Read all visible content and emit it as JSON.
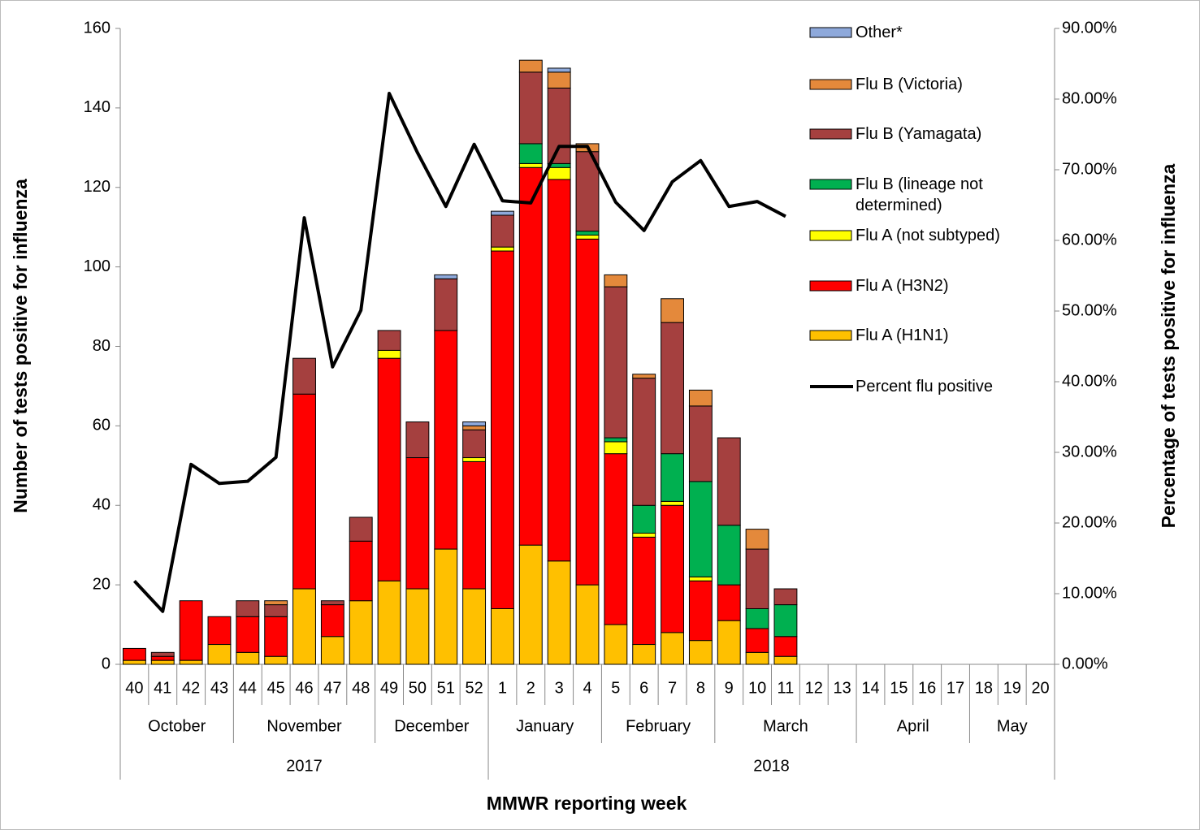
{
  "chart_data": {
    "type": "bar",
    "stacked": true,
    "x_label": "MMWR reporting week",
    "y_label": "Number of tests positive for influenza",
    "y2_label": "Percentage of tests positive for influenza",
    "categories": [
      "40",
      "41",
      "42",
      "43",
      "44",
      "45",
      "46",
      "47",
      "48",
      "49",
      "50",
      "51",
      "52",
      "1",
      "2",
      "3",
      "4",
      "5",
      "6",
      "7",
      "8",
      "9",
      "10",
      "11",
      "12",
      "13",
      "14",
      "15",
      "16",
      "17",
      "18",
      "19",
      "20"
    ],
    "months": [
      "October",
      null,
      null,
      null,
      "November",
      null,
      null,
      null,
      null,
      "December",
      null,
      null,
      null,
      "January",
      null,
      null,
      null,
      "February",
      null,
      null,
      null,
      "March",
      null,
      null,
      null,
      null,
      "April",
      null,
      null,
      null,
      "May",
      null,
      null
    ],
    "years": [
      "2017",
      null,
      null,
      null,
      null,
      null,
      null,
      null,
      null,
      null,
      null,
      null,
      null,
      "2018",
      null,
      null,
      null,
      null,
      null,
      null,
      null,
      null,
      null,
      null,
      null,
      null,
      null,
      null,
      null,
      null,
      null,
      null,
      null
    ],
    "ylim": [
      0,
      160
    ],
    "yticks": [
      0,
      20,
      40,
      60,
      80,
      100,
      120,
      140,
      160
    ],
    "y2lim": [
      0,
      90
    ],
    "y2ticks": [
      {
        "value": 0,
        "label": "0.00%"
      },
      {
        "value": 10,
        "label": "10.00%"
      },
      {
        "value": 20,
        "label": "20.00%"
      },
      {
        "value": 30,
        "label": "30.00%"
      },
      {
        "value": 40,
        "label": "40.00%"
      },
      {
        "value": 50,
        "label": "50.00%"
      },
      {
        "value": 60,
        "label": "60.00%"
      },
      {
        "value": 70,
        "label": "70.00%"
      },
      {
        "value": 80,
        "label": "80.00%"
      },
      {
        "value": 90,
        "label": "90.00%"
      }
    ],
    "legend": "right",
    "series": [
      {
        "name": "Flu A (H1N1)",
        "color": "#FFC000",
        "values": [
          1,
          1,
          1,
          5,
          3,
          2,
          19,
          7,
          16,
          21,
          19,
          29,
          19,
          14,
          30,
          26,
          20,
          10,
          5,
          8,
          6,
          11,
          3,
          2,
          null,
          null,
          null,
          null,
          null,
          null,
          null,
          null,
          null
        ]
      },
      {
        "name": "Flu A (H3N2)",
        "color": "#FF0000",
        "values": [
          3,
          1,
          15,
          7,
          9,
          10,
          49,
          8,
          15,
          56,
          33,
          55,
          32,
          90,
          95,
          96,
          87,
          43,
          27,
          32,
          15,
          9,
          6,
          5,
          null,
          null,
          null,
          null,
          null,
          null,
          null,
          null,
          null
        ]
      },
      {
        "name": "Flu A (not subtyped)",
        "color": "#FFFF00",
        "values": [
          0,
          0,
          0,
          0,
          0,
          0,
          0,
          0,
          0,
          2,
          0,
          0,
          1,
          1,
          1,
          3,
          1,
          3,
          1,
          1,
          1,
          0,
          0,
          0,
          null,
          null,
          null,
          null,
          null,
          null,
          null,
          null,
          null
        ]
      },
      {
        "name": "Flu B (lineage not determined)",
        "color": "#00B050",
        "values": [
          0,
          0,
          0,
          0,
          0,
          0,
          0,
          0,
          0,
          0,
          0,
          0,
          0,
          0,
          5,
          1,
          1,
          1,
          7,
          12,
          24,
          15,
          5,
          8,
          null,
          null,
          null,
          null,
          null,
          null,
          null,
          null,
          null
        ]
      },
      {
        "name": "Flu B (Yamagata)",
        "color": "#A5403F",
        "values": [
          0,
          1,
          0,
          0,
          4,
          3,
          9,
          1,
          6,
          5,
          9,
          13,
          7,
          8,
          18,
          19,
          20,
          38,
          32,
          33,
          19,
          22,
          15,
          4,
          null,
          null,
          null,
          null,
          null,
          null,
          null,
          null,
          null
        ]
      },
      {
        "name": "Flu B (Victoria)",
        "color": "#E4893B",
        "values": [
          0,
          0,
          0,
          0,
          0,
          1,
          0,
          0,
          0,
          0,
          0,
          0,
          1,
          0,
          3,
          4,
          2,
          3,
          1,
          6,
          4,
          0,
          5,
          0,
          null,
          null,
          null,
          null,
          null,
          null,
          null,
          null,
          null
        ]
      },
      {
        "name": "Other*",
        "color": "#8EA9DB",
        "values": [
          0,
          0,
          0,
          0,
          0,
          0,
          0,
          0,
          0,
          0,
          0,
          1,
          1,
          1,
          0,
          1,
          0,
          0,
          0,
          0,
          0,
          0,
          0,
          0,
          null,
          null,
          null,
          null,
          null,
          null,
          null,
          null,
          null
        ]
      },
      {
        "name": "Percent flu positive",
        "type": "line",
        "axis": "y2",
        "color": "#000000",
        "values": [
          11.8,
          7.5,
          28.3,
          25.6,
          25.9,
          29.3,
          63.2,
          42.1,
          50.1,
          80.8,
          72.4,
          64.8,
          73.6,
          65.6,
          65.3,
          73.3,
          73.3,
          65.4,
          61.4,
          68.3,
          71.3,
          64.8,
          65.5,
          63.4,
          null,
          null,
          null,
          null,
          null,
          null,
          null,
          null,
          null
        ]
      }
    ]
  }
}
